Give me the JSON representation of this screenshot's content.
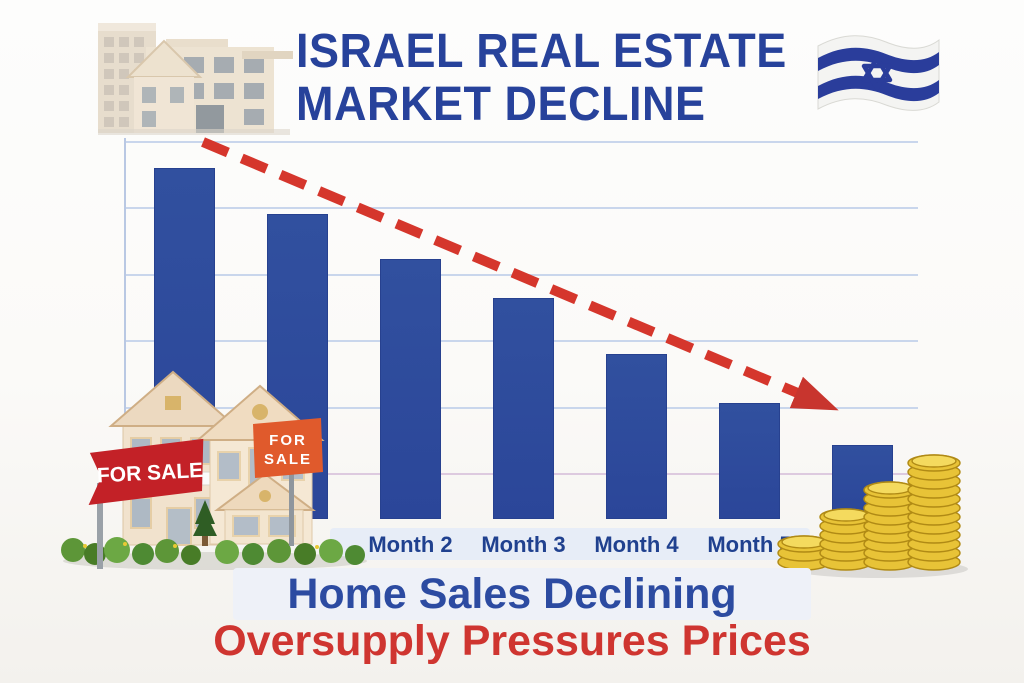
{
  "header": {
    "title_line1": "ISRAEL REAL ESTATE",
    "title_line2": "MARKET DECLINE",
    "title_color": "#27429b"
  },
  "flag": {
    "name": "Israel flag",
    "blue": "#2a3d9b",
    "white": "#f4f4f2"
  },
  "chart_data": {
    "type": "bar",
    "title": "",
    "categories": [
      "",
      "",
      "Month 2",
      "Month 3",
      "Month 4",
      "Month 5",
      ""
    ],
    "values_relative_pct": [
      100,
      87,
      74,
      63,
      47,
      33,
      21
    ],
    "series_name": "Home sales (relative, declining)",
    "bar_color": "#2d4ba0",
    "grid": true,
    "gridline_count": 6,
    "y_axis_labels": [],
    "annotations": [
      "red dashed downward trend arrow"
    ],
    "legend": "none"
  },
  "illustrations": {
    "houses": {
      "sign_left": "FOR SALE",
      "sign_right_line1": "FOR",
      "sign_right_line2": "SALE",
      "sign_left_color": "#c32127",
      "sign_right_color": "#e05a2c"
    },
    "coins": {
      "color": "#e8c337"
    },
    "buildings": {
      "color": "#e9ddca"
    }
  },
  "footer": {
    "line1": "Home Sales Declining",
    "line1_color": "#2c4ba1",
    "line2": "Oversupply Pressures Prices",
    "line2_color": "#cf3530"
  },
  "colors": {
    "trend_arrow": "#d5362c",
    "gridline": "#c9d6ec",
    "background": "#fbfaf8"
  }
}
